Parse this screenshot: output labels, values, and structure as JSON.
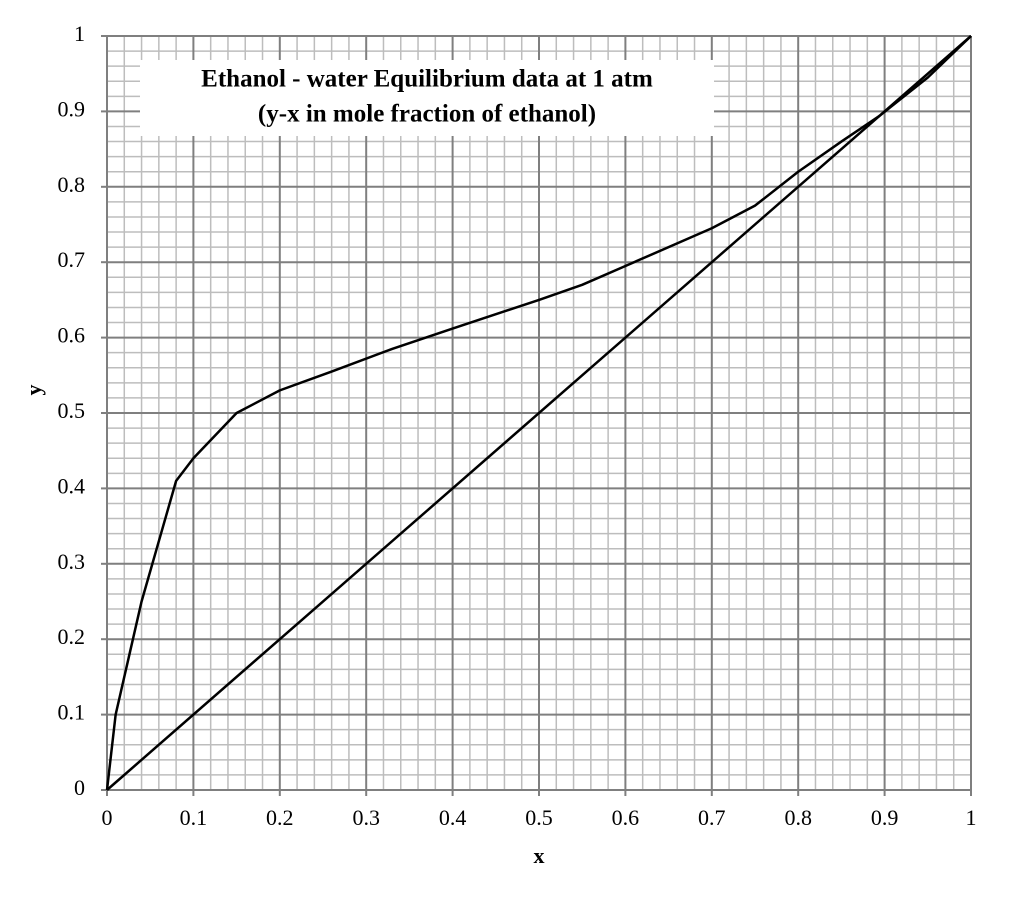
{
  "chart_data": {
    "type": "line",
    "title": [
      "Ethanol - water Equilibrium data at 1 atm",
      "(y-x in mole fraction of ethanol)"
    ],
    "x_label": "x",
    "y_label": "y",
    "xlim": [
      0,
      1
    ],
    "ylim": [
      0,
      1
    ],
    "xticks": [
      0,
      0.1,
      0.2,
      0.3,
      0.4,
      0.5,
      0.6,
      0.7,
      0.8,
      0.9,
      1
    ],
    "yticks": [
      0,
      0.1,
      0.2,
      0.3,
      0.4,
      0.5,
      0.6,
      0.7,
      0.8,
      0.9,
      1
    ],
    "grid": true,
    "minor_grid": 5,
    "series": [
      {
        "color": "#000000",
        "x": [
          0,
          0.01,
          0.02,
          0.04,
          0.06,
          0.08,
          0.1,
          0.15,
          0.2,
          0.26,
          0.33,
          0.4,
          0.5,
          0.55,
          0.6,
          0.7,
          0.75,
          0.8,
          0.85,
          0.894,
          0.95,
          1
        ],
        "values": [
          0,
          0.1,
          0.15,
          0.25,
          0.33,
          0.41,
          0.44,
          0.5,
          0.53,
          0.555,
          0.585,
          0.612,
          0.65,
          0.67,
          0.695,
          0.745,
          0.775,
          0.82,
          0.86,
          0.894,
          0.945,
          1
        ]
      },
      {
        "color": "#000000",
        "x": [
          0,
          1
        ],
        "values": [
          0,
          1
        ]
      }
    ]
  }
}
